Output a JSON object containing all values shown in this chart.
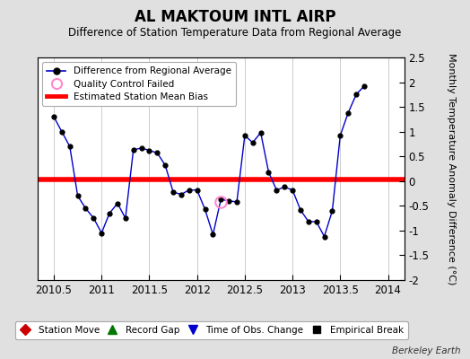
{
  "title": "AL MAKTOUM INTL AIRP",
  "subtitle": "Difference of Station Temperature Data from Regional Average",
  "ylabel": "Monthly Temperature Anomaly Difference (°C)",
  "watermark": "Berkeley Earth",
  "xlim": [
    2010.33,
    2014.17
  ],
  "ylim": [
    -2.0,
    2.5
  ],
  "yticks": [
    -2.0,
    -1.5,
    -1.0,
    -0.5,
    0.0,
    0.5,
    1.0,
    1.5,
    2.0,
    2.5
  ],
  "xticks": [
    2010.5,
    2011.0,
    2011.5,
    2012.0,
    2012.5,
    2013.0,
    2013.5,
    2014.0
  ],
  "xtick_labels": [
    "2010.5",
    "2011",
    "2011.5",
    "2012",
    "2012.5",
    "2013",
    "2013.5",
    "2014"
  ],
  "mean_bias": 0.03,
  "background_color": "#e0e0e0",
  "plot_bg_color": "#ffffff",
  "line_color": "#0000cc",
  "bias_color": "#ff0000",
  "data_x": [
    2010.5,
    2010.583,
    2010.667,
    2010.75,
    2010.833,
    2010.917,
    2011.0,
    2011.083,
    2011.167,
    2011.25,
    2011.333,
    2011.417,
    2011.5,
    2011.583,
    2011.667,
    2011.75,
    2011.833,
    2011.917,
    2012.0,
    2012.083,
    2012.167,
    2012.25,
    2012.333,
    2012.417,
    2012.5,
    2012.583,
    2012.667,
    2012.75,
    2012.833,
    2012.917,
    2013.0,
    2013.083,
    2013.167,
    2013.25,
    2013.333,
    2013.417,
    2013.5,
    2013.583,
    2013.667,
    2013.75
  ],
  "data_y": [
    1.3,
    1.0,
    0.7,
    -0.3,
    -0.55,
    -0.75,
    -1.05,
    -0.65,
    -0.45,
    -0.75,
    0.63,
    0.67,
    0.62,
    0.57,
    0.32,
    -0.22,
    -0.27,
    -0.18,
    -0.18,
    -0.57,
    -1.08,
    -0.37,
    -0.4,
    -0.42,
    0.92,
    0.78,
    0.98,
    0.18,
    -0.18,
    -0.12,
    -0.18,
    -0.58,
    -0.82,
    -0.82,
    -1.12,
    -0.6,
    0.92,
    1.38,
    1.75,
    1.92
  ],
  "qc_failed_x": [
    2012.25
  ],
  "qc_failed_y": [
    -0.42
  ]
}
